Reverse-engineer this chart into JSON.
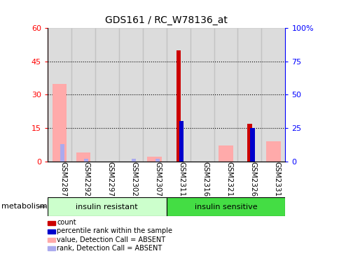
{
  "title": "GDS161 / RC_W78136_at",
  "samples": [
    "GSM2287",
    "GSM2292",
    "GSM2297",
    "GSM2302",
    "GSM2307",
    "GSM2311",
    "GSM2316",
    "GSM2321",
    "GSM2326",
    "GSM2331"
  ],
  "count": [
    0,
    0,
    0,
    0,
    0,
    50,
    0,
    0,
    17,
    0
  ],
  "percentile_rank": [
    0,
    0,
    0,
    0,
    0,
    30,
    0,
    0,
    25,
    0
  ],
  "value_absent": [
    35,
    4,
    0,
    0,
    2,
    0,
    0,
    7,
    0,
    9
  ],
  "rank_absent": [
    13,
    2,
    0,
    2,
    2,
    0,
    0,
    0,
    0,
    0
  ],
  "ylim_left": [
    0,
    60
  ],
  "ylim_right": [
    0,
    100
  ],
  "yticks_left": [
    0,
    15,
    30,
    45,
    60
  ],
  "yticks_right": [
    0,
    25,
    50,
    75,
    100
  ],
  "ytick_labels_right": [
    "0",
    "25",
    "50",
    "75",
    "100%"
  ],
  "group1_label": "insulin resistant",
  "group2_label": "insulin sensitive",
  "group1_color": "#ccffcc",
  "group2_color": "#44dd44",
  "bar_bg_color": "#bbbbbb",
  "count_color": "#cc0000",
  "rank_color": "#0000cc",
  "value_absent_color": "#ffaaaa",
  "rank_absent_color": "#aaaaee",
  "metabolism_label": "metabolism",
  "legend_items": [
    "count",
    "percentile rank within the sample",
    "value, Detection Call = ABSENT",
    "rank, Detection Call = ABSENT"
  ]
}
